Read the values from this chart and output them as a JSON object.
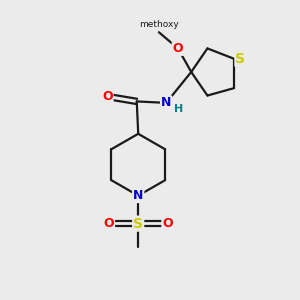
{
  "background_color": "#ebebeb",
  "bond_color": "#1a1a1a",
  "atom_colors": {
    "O": "#ff0000",
    "N": "#0000cc",
    "S_thiolane": "#cccc00",
    "S_sulfonyl": "#cccc00",
    "H": "#008080",
    "C": "#1a1a1a"
  },
  "fig_width": 3.0,
  "fig_height": 3.0,
  "dpi": 100,
  "xlim": [
    0,
    10
  ],
  "ylim": [
    0,
    10
  ]
}
